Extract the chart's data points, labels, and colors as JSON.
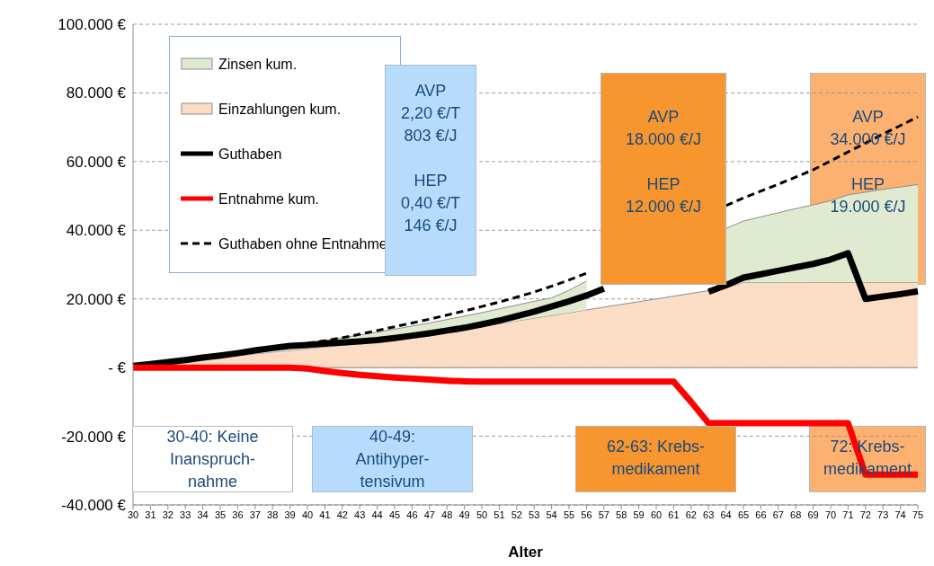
{
  "chart_data": {
    "type": "line",
    "xlabel": "Alter",
    "categories": [
      "30",
      "31",
      "32",
      "33",
      "34",
      "35",
      "36",
      "37",
      "38",
      "39",
      "40",
      "41",
      "42",
      "43",
      "44",
      "45",
      "46",
      "47",
      "48",
      "49",
      "50",
      "51",
      "52",
      "53",
      "54",
      "55",
      "56",
      "57",
      "58",
      "59",
      "60",
      "61",
      "62",
      "63",
      "64",
      "65",
      "66",
      "67",
      "68",
      "69",
      "70",
      "71",
      "72",
      "73",
      "74",
      "75"
    ],
    "series": [
      {
        "name": "Einzahlungen kum.",
        "type": "area",
        "color": "#fbdcc4",
        "values": [
          500,
          1000,
          1500,
          2000,
          2500,
          3000,
          3500,
          4000,
          4500,
          5000,
          5500,
          6000,
          6500,
          7000,
          7500,
          8000,
          8800,
          9600,
          10400,
          11200,
          12000,
          12800,
          13600,
          14400,
          15200,
          16000,
          16800,
          17600,
          18400,
          19200,
          20000,
          20800,
          21600,
          22400,
          23200,
          24800,
          24800,
          24800,
          24800,
          24800,
          24800,
          24800,
          24800,
          24800,
          24800,
          24800
        ]
      },
      {
        "name": "Zinsen kum.",
        "type": "area",
        "color": "#e0ead0",
        "values": [
          0,
          100,
          200,
          300,
          500,
          600,
          800,
          1000,
          1200,
          1400,
          1600,
          1900,
          2200,
          2500,
          2800,
          3200,
          3300,
          3400,
          3600,
          3800,
          4000,
          4300,
          4600,
          4900,
          5100,
          6500,
          8400,
          null,
          null,
          null,
          null,
          null,
          null,
          null,
          17300,
          17900,
          19100,
          20300,
          21500,
          22600,
          23800,
          25500,
          26300,
          27100,
          27800,
          28500
        ]
      },
      {
        "name": "Guthaben",
        "color": "#000000",
        "line_style": "solid",
        "values": [
          500,
          1000,
          1600,
          2200,
          2900,
          3500,
          4200,
          5000,
          5700,
          6300,
          6600,
          7000,
          7300,
          7600,
          8000,
          8600,
          9300,
          10000,
          10800,
          11600,
          12600,
          13700,
          15000,
          16300,
          17800,
          19300,
          21000,
          23000,
          null,
          null,
          null,
          null,
          null,
          22100,
          24000,
          26200,
          27200,
          28200,
          29200,
          30200,
          31500,
          33300,
          20000,
          20700,
          21400,
          22200
        ]
      },
      {
        "name": "Entnahme kum.",
        "color": "#ff0000",
        "line_style": "solid",
        "values": [
          0,
          0,
          0,
          0,
          0,
          0,
          0,
          0,
          0,
          0,
          -300,
          -1000,
          -1600,
          -2100,
          -2500,
          -2900,
          -3200,
          -3500,
          -3800,
          -4000,
          -4100,
          -4100,
          -4100,
          -4100,
          -4100,
          -4100,
          -4100,
          -4100,
          -4100,
          -4100,
          -4100,
          -4100,
          -10000,
          -16200,
          -16200,
          -16200,
          -16200,
          -16200,
          -16200,
          -16200,
          -16200,
          -16200,
          -31200,
          -31200,
          -31200,
          -31200
        ]
      },
      {
        "name": "Guthaben ohne Entnahme",
        "color": "#000000",
        "line_style": "dashed",
        "values": [
          null,
          null,
          null,
          null,
          null,
          null,
          null,
          null,
          null,
          null,
          7100,
          7800,
          8700,
          9700,
          10800,
          11900,
          13000,
          14100,
          15300,
          16500,
          17800,
          19100,
          20500,
          22000,
          23700,
          25500,
          27500,
          null,
          null,
          null,
          null,
          null,
          null,
          null,
          47200,
          49400,
          51400,
          53400,
          55500,
          57600,
          60200,
          62800,
          65400,
          68000,
          70500,
          73000
        ]
      }
    ],
    "stacked": true,
    "ylim": [
      -40000,
      100000
    ],
    "yticks": [
      {
        "value": -40000,
        "label": "-40.000 €"
      },
      {
        "value": -20000,
        "label": "-20.000 €"
      },
      {
        "value": 0,
        "label": "- €"
      },
      {
        "value": 20000,
        "label": "20.000 €"
      },
      {
        "value": 40000,
        "label": "40.000 €"
      },
      {
        "value": 60000,
        "label": "60.000 €"
      },
      {
        "value": 80000,
        "label": "80.000 €"
      },
      {
        "value": 100000,
        "label": "100.000 €"
      }
    ],
    "grid": "y",
    "legend": "top left",
    "marker": "none",
    "annotations": [
      "AVP\n2,20 €/T\n803 €/J\n\nHEP\n0,40 €/T\n146 €/J",
      "AVP\n18.000 €/J\n\nHEP\n12.000 €/J",
      "AVP\n34.000 €/J\n\nHEP\n19.000 €/J",
      "30-40: Keine\nInanspruch-\nnahme",
      "40-49:\nAntihyper-\ntensivum",
      "62-63: Krebs-\nmedikament",
      "72: Krebs-\nmedikament"
    ]
  }
}
